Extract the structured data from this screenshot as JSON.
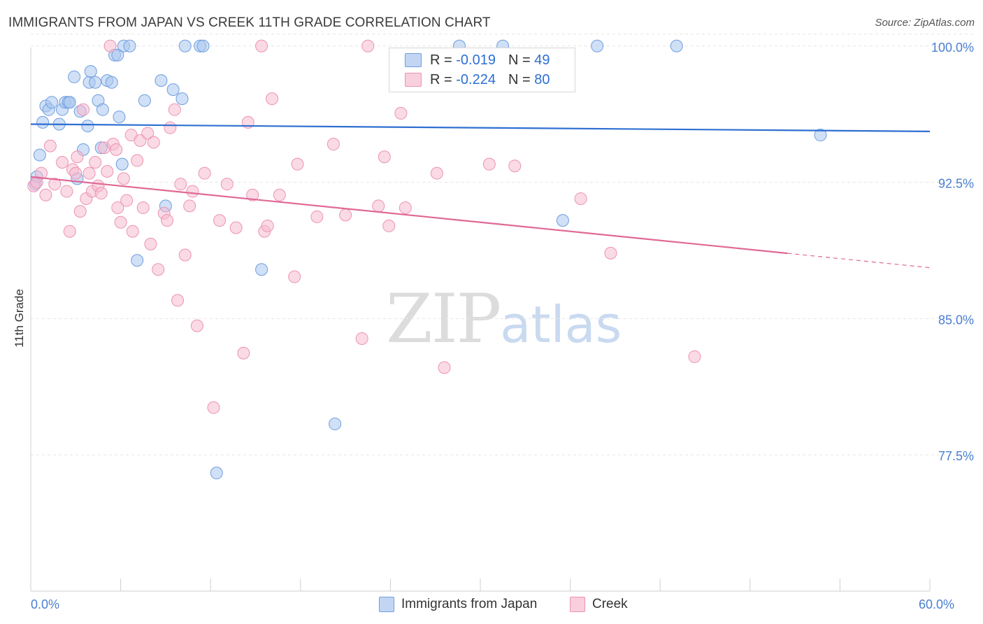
{
  "header": {
    "title": "IMMIGRANTS FROM JAPAN VS CREEK 11TH GRADE CORRELATION CHART",
    "source": "Source: ZipAtlas.com"
  },
  "legend": {
    "rows": [
      {
        "r_label": "R =",
        "r_value": "-0.019",
        "n_label": "N =",
        "n_value": "49"
      },
      {
        "r_label": "R =",
        "r_value": "-0.224",
        "n_label": "N =",
        "n_value": "80"
      }
    ]
  },
  "watermark": {
    "zip": "ZIP",
    "atlas": "atlas"
  },
  "colors": {
    "series1_fill": "#a9c6ef",
    "series1_stroke": "#6f9ee0",
    "series1_line": "#2e6fd1",
    "series2_fill": "#f6bcd0",
    "series2_stroke": "#ec93b2",
    "series2_line": "#e06895",
    "grid": "#e6e6e6",
    "tick_text": "#4a7fd0"
  },
  "chart_data": {
    "type": "scatter",
    "title": "IMMIGRANTS FROM JAPAN VS CREEK 11TH GRADE CORRELATION CHART",
    "xlabel": "",
    "ylabel": "11th Grade",
    "xlim": [
      0,
      60
    ],
    "ylim": [
      70.0,
      100.8
    ],
    "x_tick_labels": [
      {
        "value": 0,
        "label": "0.0%"
      },
      {
        "value": 60,
        "label": "60.0%"
      }
    ],
    "y_tick_labels": [
      {
        "value": 100.0,
        "label": "100.0%"
      },
      {
        "value": 92.5,
        "label": "92.5%"
      },
      {
        "value": 85.0,
        "label": "85.0%"
      },
      {
        "value": 77.5,
        "label": "77.5%"
      }
    ],
    "grid": true,
    "legend_position": "top-center",
    "series": [
      {
        "name": "Immigrants from Japan",
        "R": -0.019,
        "N": 49,
        "trend": {
          "x0": 0,
          "y0": 95.7,
          "x1": 60,
          "y1": 95.3,
          "dashed_from": null
        },
        "points": [
          [
            0.3,
            92.4
          ],
          [
            0.6,
            94.0
          ],
          [
            0.8,
            95.8
          ],
          [
            1.0,
            96.7
          ],
          [
            1.2,
            96.5
          ],
          [
            1.4,
            96.9
          ],
          [
            1.9,
            95.7
          ],
          [
            2.1,
            96.5
          ],
          [
            2.3,
            96.9
          ],
          [
            2.5,
            96.9
          ],
          [
            2.9,
            98.3
          ],
          [
            3.1,
            92.7
          ],
          [
            3.3,
            96.4
          ],
          [
            3.5,
            94.3
          ],
          [
            3.8,
            95.6
          ],
          [
            3.9,
            98.0
          ],
          [
            4.0,
            98.6
          ],
          [
            4.3,
            98.0
          ],
          [
            4.5,
            97.0
          ],
          [
            4.7,
            94.4
          ],
          [
            4.8,
            96.5
          ],
          [
            5.1,
            98.1
          ],
          [
            5.4,
            98.0
          ],
          [
            5.6,
            99.5
          ],
          [
            5.8,
            99.5
          ],
          [
            5.9,
            96.1
          ],
          [
            6.1,
            93.5
          ],
          [
            6.2,
            100.0
          ],
          [
            6.6,
            100.0
          ],
          [
            7.1,
            88.2
          ],
          [
            7.6,
            97.0
          ],
          [
            8.7,
            98.1
          ],
          [
            9.0,
            91.2
          ],
          [
            9.5,
            97.6
          ],
          [
            10.1,
            97.1
          ],
          [
            10.3,
            100.0
          ],
          [
            11.3,
            100.0
          ],
          [
            11.5,
            100.0
          ],
          [
            12.4,
            76.5
          ],
          [
            15.4,
            87.7
          ],
          [
            20.3,
            79.2
          ],
          [
            28.6,
            100.0
          ],
          [
            31.5,
            100.0
          ],
          [
            35.5,
            90.4
          ],
          [
            37.8,
            100.0
          ],
          [
            43.1,
            100.0
          ],
          [
            52.7,
            95.1
          ],
          [
            0.4,
            92.8
          ],
          [
            2.6,
            96.9
          ]
        ]
      },
      {
        "name": "Creek",
        "R": -0.224,
        "N": 80,
        "trend": {
          "x0": 0,
          "y0": 92.8,
          "x1": 60,
          "y1": 87.8,
          "dashed_from": 50.5
        },
        "points": [
          [
            0.2,
            92.3
          ],
          [
            0.4,
            92.5
          ],
          [
            0.7,
            93.0
          ],
          [
            1.0,
            91.8
          ],
          [
            1.3,
            94.5
          ],
          [
            1.6,
            92.4
          ],
          [
            2.1,
            93.6
          ],
          [
            2.4,
            92.0
          ],
          [
            2.6,
            89.8
          ],
          [
            2.8,
            93.2
          ],
          [
            3.0,
            93.0
          ],
          [
            3.1,
            93.9
          ],
          [
            3.3,
            90.9
          ],
          [
            3.5,
            96.5
          ],
          [
            3.7,
            91.6
          ],
          [
            3.9,
            93.0
          ],
          [
            4.1,
            92.0
          ],
          [
            4.3,
            93.6
          ],
          [
            4.5,
            92.3
          ],
          [
            4.7,
            91.9
          ],
          [
            4.9,
            94.4
          ],
          [
            5.1,
            93.1
          ],
          [
            5.3,
            100.0
          ],
          [
            5.5,
            94.6
          ],
          [
            5.7,
            94.3
          ],
          [
            5.8,
            91.1
          ],
          [
            6.0,
            90.3
          ],
          [
            6.2,
            92.7
          ],
          [
            6.4,
            91.5
          ],
          [
            6.7,
            95.1
          ],
          [
            6.8,
            89.8
          ],
          [
            7.1,
            93.7
          ],
          [
            7.3,
            94.8
          ],
          [
            7.5,
            91.1
          ],
          [
            7.8,
            95.2
          ],
          [
            8.0,
            89.1
          ],
          [
            8.2,
            94.7
          ],
          [
            8.5,
            87.7
          ],
          [
            8.9,
            90.8
          ],
          [
            9.1,
            90.4
          ],
          [
            9.3,
            95.5
          ],
          [
            9.6,
            96.5
          ],
          [
            9.8,
            86.0
          ],
          [
            10.0,
            92.4
          ],
          [
            10.3,
            88.5
          ],
          [
            10.6,
            91.2
          ],
          [
            10.8,
            92.0
          ],
          [
            11.1,
            84.6
          ],
          [
            11.6,
            93.0
          ],
          [
            12.2,
            80.1
          ],
          [
            12.6,
            90.4
          ],
          [
            13.1,
            92.4
          ],
          [
            13.7,
            90.0
          ],
          [
            14.2,
            83.1
          ],
          [
            14.5,
            95.8
          ],
          [
            14.8,
            91.8
          ],
          [
            15.4,
            100.0
          ],
          [
            15.6,
            89.8
          ],
          [
            15.8,
            90.1
          ],
          [
            16.1,
            97.1
          ],
          [
            16.6,
            91.8
          ],
          [
            17.6,
            87.3
          ],
          [
            17.8,
            93.5
          ],
          [
            19.1,
            90.6
          ],
          [
            20.2,
            94.6
          ],
          [
            21.0,
            90.7
          ],
          [
            22.1,
            83.9
          ],
          [
            22.5,
            100.0
          ],
          [
            23.2,
            91.2
          ],
          [
            23.6,
            93.9
          ],
          [
            23.9,
            90.1
          ],
          [
            24.7,
            96.3
          ],
          [
            25.0,
            91.1
          ],
          [
            27.1,
            93.0
          ],
          [
            27.6,
            82.3
          ],
          [
            30.6,
            93.5
          ],
          [
            32.3,
            93.4
          ],
          [
            36.7,
            91.6
          ],
          [
            38.7,
            88.6
          ],
          [
            44.3,
            82.9
          ]
        ]
      }
    ]
  }
}
